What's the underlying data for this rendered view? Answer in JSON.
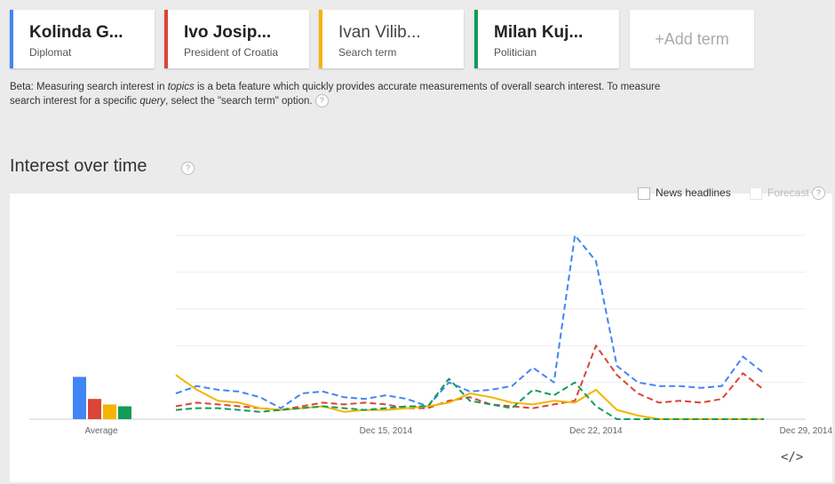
{
  "terms": [
    {
      "name": "Kolinda G...",
      "type": "Diplomat",
      "color": "#4285f4"
    },
    {
      "name": "Ivo Josip...",
      "type": "President of Croatia",
      "color": "#db4437"
    },
    {
      "name": "Ivan Vilib...",
      "type": "Search term",
      "color": "#f4b400"
    },
    {
      "name": "Milan Kuj...",
      "type": "Politician",
      "color": "#0f9d58"
    }
  ],
  "add_term_label": "+Add term",
  "beta": {
    "p1": "Beta: Measuring search interest in ",
    "em1": "topics",
    "p2": " is a beta feature which quickly provides accurate measurements of overall search interest. To measure search interest for a specific ",
    "em2": "query",
    "p3": ", select the \"search term\" option."
  },
  "help_glyph": "?",
  "section_title": "Interest over time",
  "options": {
    "news_headlines": "News headlines",
    "forecast": "Forecast"
  },
  "embed_glyph": "</>",
  "chart_data": {
    "type": "line",
    "x_ticks": [
      {
        "label": "Dec 15, 2014",
        "index": 10
      },
      {
        "label": "Dec 22, 2014",
        "index": 20
      },
      {
        "label": "Dec 29, 2014",
        "index": 30
      }
    ],
    "ylim": [
      0,
      100
    ],
    "average_label": "Average",
    "average": [
      {
        "name": "Kolinda G...",
        "value": 23
      },
      {
        "name": "Ivo Josip...",
        "value": 11
      },
      {
        "name": "Ivan Vilib...",
        "value": 8
      },
      {
        "name": "Milan Kuj...",
        "value": 7
      }
    ],
    "series": [
      {
        "name": "Kolinda G...",
        "color": "#4285f4",
        "dashed": true,
        "values": [
          14,
          18,
          16,
          15,
          12,
          6,
          14,
          15,
          12,
          11,
          13,
          11,
          7,
          20,
          15,
          16,
          18,
          28,
          20,
          100,
          86,
          29,
          20,
          18,
          18,
          17,
          18,
          34,
          25
        ]
      },
      {
        "name": "Ivo Josip...",
        "color": "#db4437",
        "dashed": true,
        "values": [
          7,
          9,
          8,
          7,
          6,
          5,
          7,
          9,
          8,
          9,
          8,
          6,
          6,
          10,
          12,
          8,
          7,
          6,
          8,
          10,
          40,
          24,
          14,
          9,
          10,
          9,
          11,
          25,
          16
        ]
      },
      {
        "name": "Ivan Vilib...",
        "color": "#f4b400",
        "dashed": false,
        "values": [
          24,
          16,
          10,
          9,
          6,
          5,
          6,
          7,
          4,
          5,
          5,
          6,
          7,
          9,
          14,
          12,
          9,
          8,
          10,
          9,
          16,
          5,
          2,
          0,
          0,
          0,
          0,
          0,
          0
        ]
      },
      {
        "name": "Milan Kuj...",
        "color": "#0f9d58",
        "dashed": true,
        "values": [
          5,
          6,
          6,
          5,
          4,
          5,
          6,
          7,
          6,
          5,
          6,
          7,
          7,
          22,
          10,
          8,
          6,
          16,
          13,
          20,
          7,
          0,
          0,
          0,
          0,
          0,
          0,
          0,
          0
        ]
      }
    ]
  }
}
